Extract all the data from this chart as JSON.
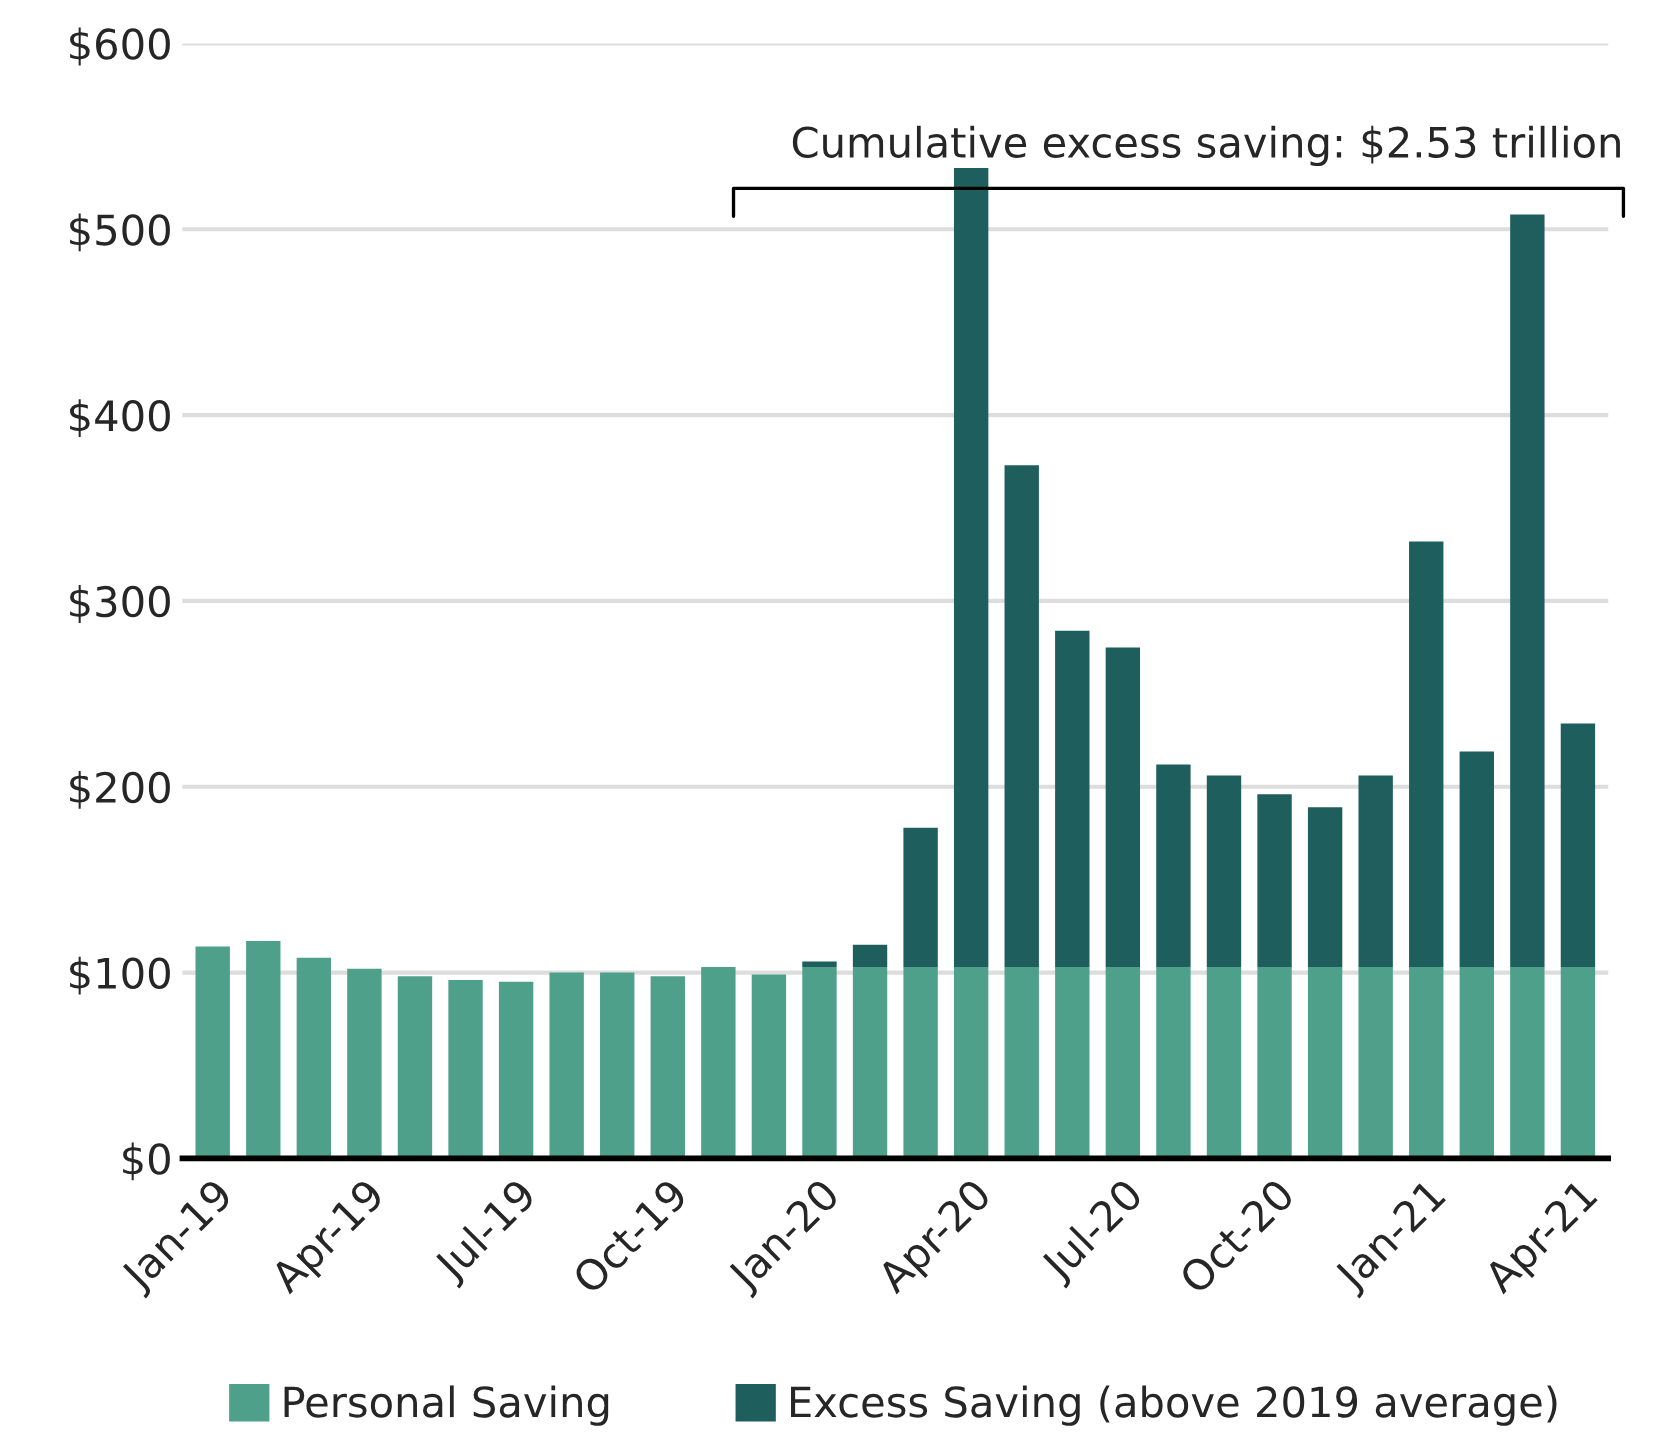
{
  "chart_data": {
    "type": "bar",
    "stacked": true,
    "categories": [
      "Jan-19",
      null,
      null,
      "Apr-19",
      null,
      null,
      "Jul-19",
      null,
      null,
      "Oct-19",
      null,
      null,
      "Jan-20",
      null,
      null,
      "Apr-20",
      null,
      null,
      "Jul-20",
      null,
      null,
      "Oct-20",
      null,
      null,
      "Jan-21",
      null,
      null,
      "Apr-21"
    ],
    "series": [
      {
        "name": "Personal Saving",
        "color": "#4fa08b",
        "values": [
          114,
          117,
          108,
          102,
          98,
          96,
          95,
          100,
          100,
          98,
          103,
          99,
          103,
          103,
          103,
          103,
          103,
          103,
          103,
          103,
          103,
          103,
          103,
          103,
          103,
          103,
          103,
          103
        ]
      },
      {
        "name": "Excess Saving (above 2019 average)",
        "color": "#1e5f5d",
        "values": [
          null,
          null,
          null,
          null,
          null,
          null,
          null,
          null,
          null,
          null,
          null,
          null,
          3,
          12,
          75,
          430,
          270,
          181,
          172,
          109,
          103,
          93,
          86,
          103,
          229,
          116,
          405,
          131
        ]
      }
    ],
    "ylim": [
      0,
      600
    ],
    "yticks": [
      {
        "value": 0,
        "label": "$0"
      },
      {
        "value": 100,
        "label": "$100"
      },
      {
        "value": 200,
        "label": "$200"
      },
      {
        "value": 300,
        "label": "$300"
      },
      {
        "value": 400,
        "label": "$400"
      },
      {
        "value": 500,
        "label": "$500"
      },
      {
        "value": 600,
        "label": "$600"
      }
    ],
    "grid": "y",
    "legend": "bottom",
    "annotations": [
      "Cumulative excess saving: $2.53 trillion"
    ]
  }
}
